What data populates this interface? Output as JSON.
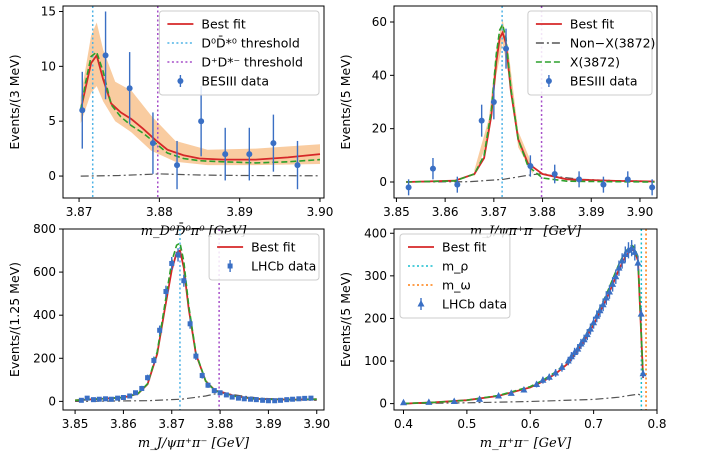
{
  "colors": {
    "fit": "#d62728",
    "band": "#f8c38f",
    "data": "#3a6fc4",
    "threshold_blue": "#4fb3e6",
    "threshold_purple": "#a64fc9",
    "bkg": "#555555",
    "signal": "#2ca02c",
    "m_rho": "#17becf",
    "m_omega": "#ff7f0e"
  },
  "chart_data": [
    {
      "type": "scatter",
      "panel": "top-left",
      "xlabel": "m_{D^0 \\bar{D}^0 \\pi^0} [GeV]",
      "xlabel_display": "m_D⁰D̄⁰π⁰ [GeV]",
      "ylabel": "Events/(3 MeV)",
      "xlim": [
        3.868,
        3.9005
      ],
      "ylim": [
        -2,
        15.5
      ],
      "xticks": [
        "3.87",
        "3.88",
        "3.89",
        "3.90"
      ],
      "xtick_values": [
        3.87,
        3.88,
        3.89,
        3.9
      ],
      "yticks": [
        "0",
        "5",
        "10",
        "15"
      ],
      "ytick_values": [
        0,
        5,
        10,
        15
      ],
      "legend_position": "top-right",
      "legend": [
        {
          "label": "Best fit",
          "style": "line",
          "color": "#d62728"
        },
        {
          "label": "D⁰D̄*⁰ threshold",
          "style": "dotted",
          "color": "#4fb3e6"
        },
        {
          "label": "D⁺D*⁻ threshold",
          "style": "dotted",
          "color": "#a64fc9"
        },
        {
          "label": "BESIII data",
          "style": "point",
          "color": "#3a6fc4"
        }
      ],
      "vlines": [
        {
          "x": 3.8717,
          "color": "#4fb3e6"
        },
        {
          "x": 3.8798,
          "color": "#a64fc9"
        }
      ],
      "data": {
        "x": [
          3.8704,
          3.8733,
          3.8763,
          3.8792,
          3.8822,
          3.8852,
          3.8882,
          3.8912,
          3.8942,
          3.8972
        ],
        "y": [
          6.0,
          11.0,
          8.0,
          3.0,
          1.0,
          5.0,
          2.0,
          2.0,
          3.0,
          1.0
        ],
        "err": [
          3.5,
          4.0,
          3.3,
          2.8,
          2.2,
          3.2,
          2.4,
          2.4,
          2.6,
          2.2
        ]
      },
      "series": [
        {
          "name": "Best fit",
          "x": [
            3.8702,
            3.8708,
            3.8715,
            3.8722,
            3.873,
            3.874,
            3.8752,
            3.8765,
            3.878,
            3.8795,
            3.881,
            3.883,
            3.885,
            3.888,
            3.892,
            3.896,
            3.9
          ],
          "y": [
            6.0,
            8.0,
            10.3,
            11.0,
            8.8,
            6.6,
            5.8,
            5.2,
            4.3,
            3.3,
            2.4,
            1.9,
            1.6,
            1.5,
            1.5,
            1.7,
            2.0
          ]
        },
        {
          "name": "signal",
          "x": [
            3.8702,
            3.8708,
            3.8715,
            3.8722,
            3.873,
            3.874,
            3.8752,
            3.8765,
            3.878,
            3.8795,
            3.881,
            3.883,
            3.885,
            3.888,
            3.892,
            3.896,
            3.9
          ],
          "y": [
            6.0,
            8.5,
            10.9,
            11.3,
            9.5,
            6.5,
            5.4,
            4.6,
            3.9,
            3.0,
            2.1,
            1.6,
            1.4,
            1.3,
            1.2,
            1.3,
            1.5
          ]
        },
        {
          "name": "background",
          "x": [
            3.8702,
            3.875,
            3.88,
            3.885,
            3.89,
            3.9
          ],
          "y": [
            0.0,
            0.05,
            0.2,
            0.1,
            0.05,
            0.02
          ]
        }
      ],
      "band": {
        "x": [
          3.8702,
          3.8715,
          3.8722,
          3.873,
          3.8745,
          3.8765,
          3.879,
          3.882,
          3.886,
          3.892,
          3.9
        ],
        "lo": [
          4.8,
          7.6,
          8.2,
          6.8,
          5.0,
          4.0,
          2.3,
          1.3,
          1.0,
          1.0,
          1.1
        ],
        "hi": [
          7.2,
          12.8,
          14.0,
          11.5,
          8.6,
          7.8,
          5.5,
          3.2,
          2.4,
          2.5,
          2.9
        ]
      }
    },
    {
      "type": "scatter",
      "panel": "top-right",
      "xlabel": "m_{J/\\psi \\pi^+ \\pi^-} [GeV]",
      "xlabel_display": "m_J/ψπ⁺π⁻ [GeV]",
      "ylabel": "Events/(5 MeV)",
      "xlim": [
        3.8495,
        3.9035
      ],
      "ylim": [
        -6,
        66
      ],
      "xticks": [
        "3.85",
        "3.86",
        "3.87",
        "3.88",
        "3.89",
        "3.90"
      ],
      "xtick_values": [
        3.85,
        3.86,
        3.87,
        3.88,
        3.89,
        3.9
      ],
      "yticks": [
        "0",
        "20",
        "40",
        "60"
      ],
      "ytick_values": [
        0,
        20,
        40,
        60
      ],
      "legend_position": "top-right",
      "legend": [
        {
          "label": "Best fit",
          "style": "line",
          "color": "#d62728"
        },
        {
          "label": "Non−X(3872)",
          "style": "dashdot",
          "color": "#555555"
        },
        {
          "label": "X(3872)",
          "style": "dashed",
          "color": "#2ca02c"
        },
        {
          "label": "BESIII data",
          "style": "point",
          "color": "#3a6fc4"
        }
      ],
      "vlines": [
        {
          "x": 3.8717,
          "color": "#4fb3e6"
        },
        {
          "x": 3.8798,
          "color": "#a64fc9"
        }
      ],
      "data": {
        "x": [
          3.8525,
          3.8575,
          3.8625,
          3.8675,
          3.87,
          3.8725,
          3.8775,
          3.8825,
          3.8875,
          3.8925,
          3.8975,
          3.9025
        ],
        "y": [
          -2.0,
          5.0,
          -1.0,
          23.0,
          30.0,
          50.0,
          6.0,
          3.0,
          1.0,
          -1.0,
          1.0,
          -2.0
        ],
        "err": [
          3.0,
          4.0,
          3.0,
          6.0,
          6.5,
          7.5,
          4.0,
          3.5,
          3.0,
          3.0,
          3.0,
          3.0
        ]
      },
      "series": [
        {
          "name": "Best fit",
          "x": [
            3.852,
            3.862,
            3.866,
            3.868,
            3.8695,
            3.8705,
            3.8712,
            3.8718,
            3.8725,
            3.8735,
            3.875,
            3.877,
            3.88,
            3.885,
            3.895,
            3.903
          ],
          "y": [
            0.0,
            0.5,
            3.0,
            9.0,
            25.0,
            45.0,
            54.0,
            56.0,
            52.0,
            34.0,
            16.0,
            7.0,
            3.0,
            1.0,
            0.4,
            0.2
          ]
        },
        {
          "name": "X(3872)",
          "x": [
            3.852,
            3.862,
            3.866,
            3.868,
            3.8695,
            3.8705,
            3.8712,
            3.8718,
            3.8725,
            3.8735,
            3.875,
            3.877,
            3.88,
            3.885,
            3.895,
            3.903
          ],
          "y": [
            0.0,
            0.4,
            3.0,
            10.0,
            27.0,
            48.0,
            57.0,
            59.0,
            54.0,
            35.0,
            16.0,
            6.0,
            1.5,
            0.3,
            0.1,
            0.0
          ]
        },
        {
          "name": "Non−X(3872)",
          "x": [
            3.852,
            3.865,
            3.872,
            3.877,
            3.88,
            3.883,
            3.888,
            3.895,
            3.903
          ],
          "y": [
            0.0,
            0.1,
            1.0,
            2.5,
            3.2,
            2.0,
            1.0,
            0.5,
            0.3
          ]
        }
      ],
      "band": {
        "x": [
          3.866,
          3.869,
          3.8705,
          3.8718,
          3.873,
          3.875,
          3.878
        ],
        "lo": [
          2.0,
          17.0,
          40.0,
          52.0,
          40.0,
          13.0,
          3.0
        ],
        "hi": [
          4.5,
          24.0,
          50.0,
          61.0,
          49.0,
          19.0,
          6.0
        ]
      }
    },
    {
      "type": "scatter",
      "panel": "bottom-left",
      "xlabel": "m_{J/\\psi \\pi^+ \\pi^-} [GeV]",
      "xlabel_display": "m_J/ψπ⁺π⁻ [GeV]",
      "ylabel": "Events/(1.25 MeV)",
      "xlim": [
        3.8475,
        3.9015
      ],
      "ylim": [
        -40,
        800
      ],
      "xticks": [
        "3.85",
        "3.86",
        "3.87",
        "3.88",
        "3.89",
        "3.90"
      ],
      "xtick_values": [
        3.85,
        3.86,
        3.87,
        3.88,
        3.89,
        3.9
      ],
      "yticks": [
        "0",
        "200",
        "400",
        "600",
        "800"
      ],
      "ytick_values": [
        0,
        200,
        400,
        600,
        800
      ],
      "legend_position": "top-right",
      "legend": [
        {
          "label": "Best fit",
          "style": "line",
          "color": "#d62728"
        },
        {
          "label": "LHCb data",
          "style": "point",
          "color": "#3a6fc4"
        }
      ],
      "vlines": [
        {
          "x": 3.8717,
          "color": "#4fb3e6"
        },
        {
          "x": 3.8798,
          "color": "#a64fc9"
        }
      ],
      "data": {
        "x": [
          3.8513,
          3.8525,
          3.8538,
          3.855,
          3.8563,
          3.8575,
          3.8588,
          3.86,
          3.8613,
          3.8625,
          3.8638,
          3.865,
          3.8663,
          3.8675,
          3.8688,
          3.87,
          3.8713,
          3.8725,
          3.8738,
          3.875,
          3.8763,
          3.8775,
          3.8788,
          3.88,
          3.8813,
          3.8825,
          3.8838,
          3.885,
          3.8863,
          3.8875,
          3.8888,
          3.89,
          3.8913,
          3.8925,
          3.8938,
          3.895,
          3.8963,
          3.8975,
          3.8988
        ],
        "y": [
          5,
          15,
          8,
          10,
          12,
          10,
          15,
          18,
          25,
          40,
          60,
          110,
          190,
          330,
          510,
          640,
          680,
          560,
          360,
          210,
          120,
          75,
          50,
          40,
          30,
          20,
          15,
          12,
          10,
          8,
          5,
          3,
          3,
          5,
          8,
          10,
          12,
          14,
          15
        ],
        "err": [
          8,
          8,
          8,
          8,
          8,
          8,
          8,
          9,
          9,
          10,
          12,
          14,
          18,
          22,
          27,
          30,
          31,
          28,
          23,
          18,
          14,
          12,
          10,
          9,
          9,
          8,
          8,
          8,
          8,
          8,
          8,
          8,
          8,
          8,
          8,
          8,
          8,
          8,
          8
        ]
      },
      "series": [
        {
          "name": "Best fit",
          "x": [
            3.85,
            3.86,
            3.863,
            3.865,
            3.867,
            3.8685,
            3.87,
            3.871,
            3.8717,
            3.8725,
            3.8735,
            3.875,
            3.877,
            3.879,
            3.8805,
            3.883,
            3.887,
            3.895,
            3.9
          ],
          "y": [
            5,
            18,
            35,
            80,
            220,
            420,
            610,
            690,
            700,
            620,
            430,
            220,
            95,
            50,
            42,
            25,
            12,
            8,
            10
          ]
        },
        {
          "name": "signal",
          "x": [
            3.85,
            3.86,
            3.863,
            3.865,
            3.867,
            3.8685,
            3.87,
            3.871,
            3.8717,
            3.8725,
            3.8735,
            3.875,
            3.877,
            3.879,
            3.8805,
            3.883,
            3.887,
            3.895,
            3.9
          ],
          "y": [
            5,
            18,
            35,
            82,
            230,
            440,
            650,
            725,
            735,
            650,
            445,
            225,
            95,
            48,
            40,
            24,
            12,
            8,
            10
          ]
        },
        {
          "name": "background",
          "x": [
            3.85,
            3.865,
            3.872,
            3.877,
            3.88,
            3.883,
            3.888,
            3.895,
            3.9
          ],
          "y": [
            0,
            3,
            10,
            25,
            40,
            30,
            15,
            8,
            5
          ]
        }
      ]
    },
    {
      "type": "scatter",
      "panel": "bottom-right",
      "xlabel": "m_{\\pi^+ \\pi^-} [GeV]",
      "xlabel_display": "m_π⁺π⁻ [GeV]",
      "ylabel": "Events/(5 MeV)",
      "xlim": [
        0.385,
        0.8
      ],
      "ylim": [
        -15,
        410
      ],
      "xticks": [
        "0.4",
        "0.5",
        "0.6",
        "0.7",
        "0.8"
      ],
      "xtick_values": [
        0.4,
        0.5,
        0.6,
        0.7,
        0.8
      ],
      "yticks": [
        "0",
        "100",
        "200",
        "300",
        "400"
      ],
      "ytick_values": [
        0,
        100,
        200,
        300,
        400
      ],
      "legend_position": "top-left",
      "legend": [
        {
          "label": "Best fit",
          "style": "line",
          "color": "#d62728"
        },
        {
          "label": "m_ρ",
          "style": "dotted",
          "color": "#17becf"
        },
        {
          "label": "m_ω",
          "style": "dotted",
          "color": "#ff7f0e"
        },
        {
          "label": "LHCb data",
          "style": "triangle",
          "color": "#3a6fc4"
        }
      ],
      "vlines": [
        {
          "x": 0.7753,
          "color": "#17becf"
        },
        {
          "x": 0.7827,
          "color": "#ff7f0e"
        }
      ],
      "data": {
        "x": [
          0.4,
          0.44,
          0.48,
          0.52,
          0.55,
          0.57,
          0.59,
          0.61,
          0.62,
          0.63,
          0.64,
          0.65,
          0.66,
          0.665,
          0.67,
          0.675,
          0.68,
          0.685,
          0.69,
          0.695,
          0.7,
          0.705,
          0.71,
          0.715,
          0.72,
          0.725,
          0.73,
          0.735,
          0.74,
          0.745,
          0.75,
          0.755,
          0.76,
          0.765,
          0.77,
          0.775,
          0.778
        ],
        "y": [
          2,
          3,
          5,
          10,
          18,
          24,
          32,
          45,
          55,
          62,
          72,
          85,
          100,
          110,
          120,
          128,
          140,
          150,
          162,
          175,
          190,
          205,
          218,
          232,
          248,
          262,
          280,
          298,
          318,
          335,
          350,
          360,
          365,
          355,
          330,
          210,
          70
        ],
        "err": [
          2,
          2,
          3,
          4,
          5,
          5,
          6,
          7,
          8,
          8,
          9,
          10,
          10,
          11,
          11,
          12,
          12,
          12,
          13,
          13,
          14,
          14,
          15,
          15,
          16,
          16,
          17,
          17,
          18,
          18,
          19,
          19,
          19,
          19,
          18,
          15,
          9
        ]
      },
      "series": [
        {
          "name": "Best fit",
          "x": [
            0.4,
            0.45,
            0.5,
            0.55,
            0.6,
            0.62,
            0.64,
            0.66,
            0.68,
            0.7,
            0.72,
            0.74,
            0.75,
            0.76,
            0.765,
            0.77,
            0.774,
            0.778
          ],
          "y": [
            0,
            3,
            8,
            18,
            38,
            52,
            70,
            95,
            135,
            185,
            245,
            315,
            345,
            362,
            358,
            335,
            200,
            60
          ]
        },
        {
          "name": "signal",
          "x": [
            0.4,
            0.45,
            0.5,
            0.55,
            0.6,
            0.62,
            0.64,
            0.66,
            0.68,
            0.7,
            0.72,
            0.74,
            0.75,
            0.76,
            0.765,
            0.77,
            0.774,
            0.778
          ],
          "y": [
            0,
            3,
            8,
            19,
            40,
            55,
            74,
            100,
            142,
            194,
            256,
            328,
            357,
            372,
            366,
            340,
            205,
            62
          ]
        },
        {
          "name": "background",
          "x": [
            0.4,
            0.5,
            0.6,
            0.7,
            0.74,
            0.76,
            0.77,
            0.778
          ],
          "y": [
            0,
            2,
            5,
            10,
            15,
            20,
            22,
            18
          ]
        }
      ]
    }
  ]
}
